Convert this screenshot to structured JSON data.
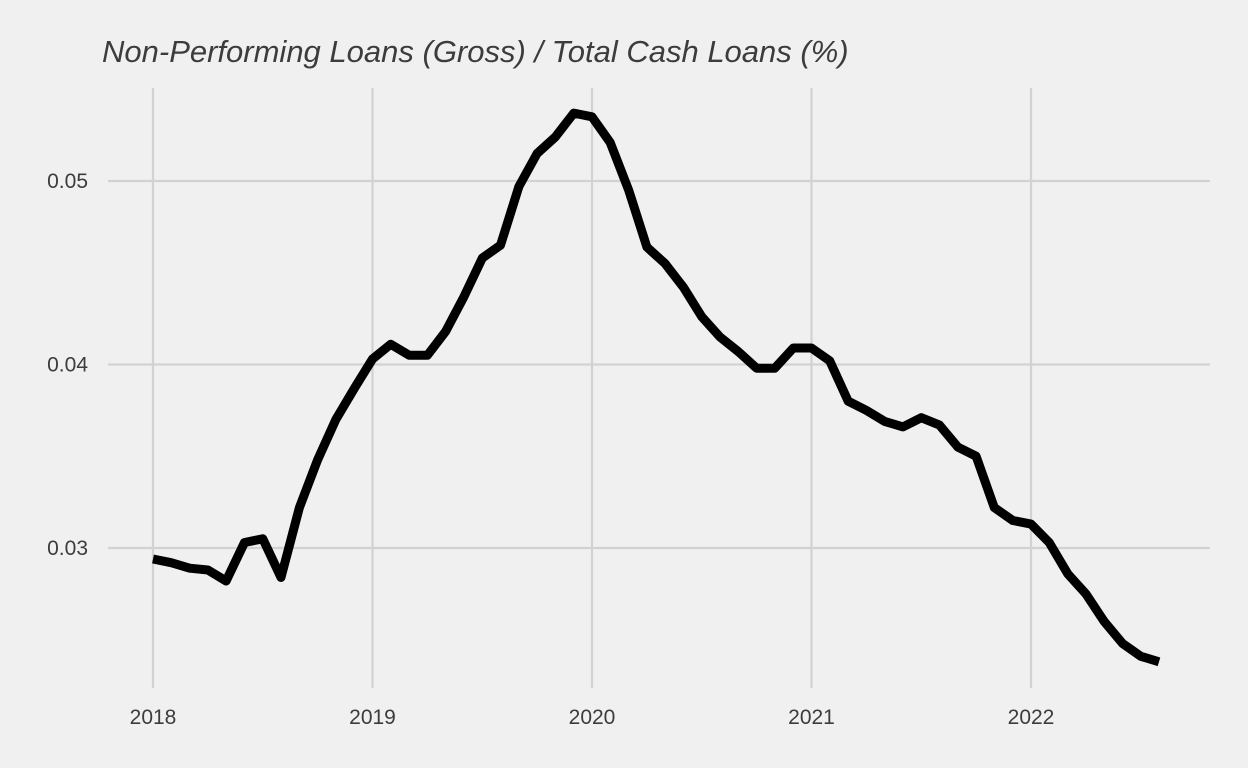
{
  "chart_data": {
    "type": "line",
    "title": "Non-Performing Loans (Gross) / Total Cash Loans (%)",
    "xlabel": "",
    "ylabel": "",
    "x_ticks": [
      "2018",
      "2019",
      "2020",
      "2021",
      "2022"
    ],
    "y_ticks": [
      "0.03",
      "0.04",
      "0.05"
    ],
    "xlim": [
      2017.8,
      2022.8
    ],
    "ylim": [
      0.0223,
      0.0556
    ],
    "grid": true,
    "legend": "none",
    "line_color": "#000000",
    "background_color": "#f0f0f0",
    "grid_color": "#d2d2d2",
    "series": [
      {
        "x": [
          2018.0,
          2018.083,
          2018.167,
          2018.25,
          2018.333,
          2018.417,
          2018.5,
          2018.583,
          2018.667,
          2018.75,
          2018.833,
          2018.917,
          2019.0,
          2019.083,
          2019.167,
          2019.25,
          2019.333,
          2019.417,
          2019.5,
          2019.583,
          2019.667,
          2019.75,
          2019.833,
          2019.917,
          2020.0,
          2020.083,
          2020.167,
          2020.25,
          2020.333,
          2020.417,
          2020.5,
          2020.583,
          2020.667,
          2020.75,
          2020.833,
          2020.917,
          2021.0,
          2021.083,
          2021.167,
          2021.25,
          2021.333,
          2021.417,
          2021.5,
          2021.583,
          2021.667,
          2021.75,
          2021.833,
          2021.917,
          2022.0,
          2022.083,
          2022.167,
          2022.25,
          2022.333,
          2022.417,
          2022.5,
          2022.583
        ],
        "values": [
          0.0294,
          0.0292,
          0.0289,
          0.0288,
          0.0282,
          0.0303,
          0.0305,
          0.0284,
          0.0322,
          0.0348,
          0.037,
          0.0387,
          0.0403,
          0.0411,
          0.0405,
          0.0405,
          0.0418,
          0.0437,
          0.0458,
          0.0465,
          0.0497,
          0.0515,
          0.0524,
          0.0537,
          0.0535,
          0.0521,
          0.0495,
          0.0464,
          0.0455,
          0.0442,
          0.0426,
          0.0415,
          0.0407,
          0.0398,
          0.0398,
          0.0409,
          0.0409,
          0.0402,
          0.038,
          0.0375,
          0.0369,
          0.0366,
          0.0371,
          0.0367,
          0.0355,
          0.035,
          0.0322,
          0.0315,
          0.0313,
          0.0303,
          0.0286,
          0.0275,
          0.026,
          0.0248,
          0.0241,
          0.0238
        ]
      }
    ]
  }
}
